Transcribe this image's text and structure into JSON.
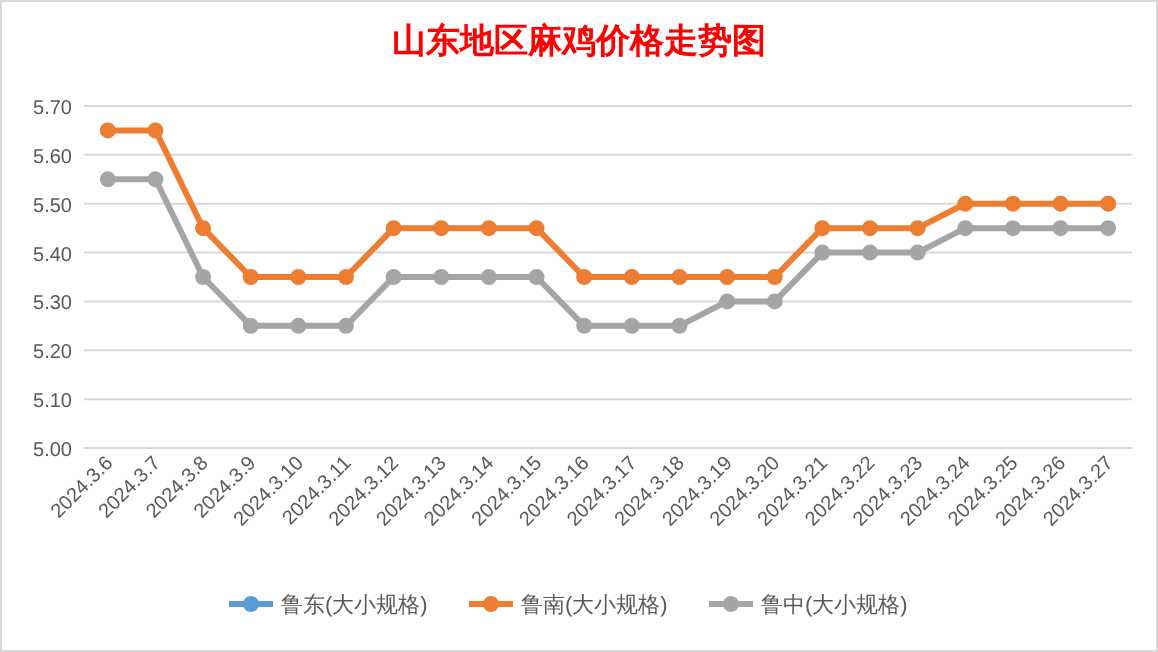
{
  "chart_data": {
    "type": "line",
    "title": "山东地区麻鸡价格走势图",
    "categories": [
      "2024.3.6",
      "2024.3.7",
      "2024.3.8",
      "2024.3.9",
      "2024.3.10",
      "2024.3.11",
      "2024.3.12",
      "2024.3.13",
      "2024.3.14",
      "2024.3.15",
      "2024.3.16",
      "2024.3.17",
      "2024.3.18",
      "2024.3.19",
      "2024.3.20",
      "2024.3.21",
      "2024.3.22",
      "2024.3.23",
      "2024.3.24",
      "2024.3.25",
      "2024.3.26",
      "2024.3.27"
    ],
    "series": [
      {
        "name": "鲁东(大小规格)",
        "color": "#5b9bd5",
        "values": [
          null,
          null,
          null,
          null,
          null,
          null,
          null,
          null,
          null,
          null,
          null,
          null,
          null,
          null,
          null,
          null,
          null,
          null,
          null,
          null,
          null,
          null
        ]
      },
      {
        "name": "鲁南(大小规格)",
        "color": "#ed7d31",
        "values": [
          5.65,
          5.65,
          5.45,
          5.35,
          5.35,
          5.35,
          5.45,
          5.45,
          5.45,
          5.45,
          5.35,
          5.35,
          5.35,
          5.35,
          5.35,
          5.45,
          5.45,
          5.45,
          5.5,
          5.5,
          5.5,
          5.5
        ]
      },
      {
        "name": "鲁中(大小规格)",
        "color": "#a5a5a5",
        "values": [
          5.55,
          5.55,
          5.35,
          5.25,
          5.25,
          5.25,
          5.35,
          5.35,
          5.35,
          5.35,
          5.25,
          5.25,
          5.25,
          5.3,
          5.3,
          5.4,
          5.4,
          5.4,
          5.45,
          5.45,
          5.45,
          5.45
        ]
      }
    ],
    "ylim": [
      5.0,
      5.7
    ],
    "yticks": [
      {
        "value": 5.0,
        "label": "5.00"
      },
      {
        "value": 5.1,
        "label": "5.10"
      },
      {
        "value": 5.2,
        "label": "5.20"
      },
      {
        "value": 5.3,
        "label": "5.30"
      },
      {
        "value": 5.4,
        "label": "5.40"
      },
      {
        "value": 5.5,
        "label": "5.50"
      },
      {
        "value": 5.6,
        "label": "5.60"
      },
      {
        "value": 5.7,
        "label": "5.70"
      }
    ],
    "grid": "y",
    "legend": "bottom",
    "marker": "circle",
    "line_style": "solid"
  }
}
